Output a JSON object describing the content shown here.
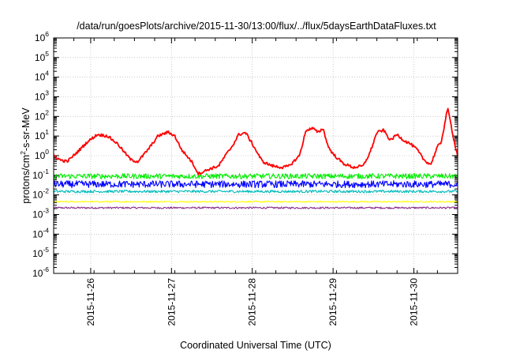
{
  "chart_data": {
    "type": "line",
    "title": "/data/run/goesPlots/archive/2015-11-30/13:00/flux/../flux/5daysEarthDataFluxes.txt",
    "xlabel": "Coordinated Universal Time (UTC)",
    "ylabel_parts": {
      "base": "protons/cm",
      "sup": "2",
      "rest": "-s-sr-MeV"
    },
    "y_scale": "log",
    "ylim": [
      1e-06,
      1000000.0
    ],
    "y_ticks": [
      {
        "value": 1e-06,
        "base": "10",
        "exp": "-6"
      },
      {
        "value": 1e-05,
        "base": "10",
        "exp": "-5"
      },
      {
        "value": 0.0001,
        "base": "10",
        "exp": "-4"
      },
      {
        "value": 0.001,
        "base": "10",
        "exp": "-3"
      },
      {
        "value": 0.01,
        "base": "10",
        "exp": "-2"
      },
      {
        "value": 0.1,
        "base": "10",
        "exp": "-1"
      },
      {
        "value": 1,
        "base": "10",
        "exp": "0"
      },
      {
        "value": 10,
        "base": "10",
        "exp": "1"
      },
      {
        "value": 100,
        "base": "10",
        "exp": "2"
      },
      {
        "value": 1000,
        "base": "10",
        "exp": "3"
      },
      {
        "value": 10000,
        "base": "10",
        "exp": "4"
      },
      {
        "value": 100000,
        "base": "10",
        "exp": "5"
      },
      {
        "value": 1000000,
        "base": "10",
        "exp": "6"
      }
    ],
    "xlim": [
      "2015-11-25T13:00",
      "2015-11-30T13:00"
    ],
    "x_ticks": [
      "2015-11-26",
      "2015-11-27",
      "2015-11-28",
      "2015-11-29",
      "2015-11-30"
    ],
    "grid": true,
    "series": [
      {
        "color": "#ff0000",
        "x": [
          "2015-11-25T13:00",
          "2015-11-25T15:00",
          "2015-11-25T17:00",
          "2015-11-25T20:00",
          "2015-11-25T23:00",
          "2015-11-26T02:00",
          "2015-11-26T05:00",
          "2015-11-26T08:00",
          "2015-11-26T10:00",
          "2015-11-26T12:00",
          "2015-11-26T14:00",
          "2015-11-26T17:00",
          "2015-11-26T20:00",
          "2015-11-26T23:00",
          "2015-11-27T01:00",
          "2015-11-27T03:00",
          "2015-11-27T06:00",
          "2015-11-27T08:00",
          "2015-11-27T11:00",
          "2015-11-27T14:00",
          "2015-11-27T16:00",
          "2015-11-27T18:00",
          "2015-11-27T20:00",
          "2015-11-27T22:00",
          "2015-11-28T00:00",
          "2015-11-28T03:00",
          "2015-11-28T06:00",
          "2015-11-28T09:00",
          "2015-11-28T11:00",
          "2015-11-28T14:00",
          "2015-11-28T16:00",
          "2015-11-28T18:00",
          "2015-11-28T19:30",
          "2015-11-28T21:00",
          "2015-11-28T22:30",
          "2015-11-29T00:00",
          "2015-11-29T03:00",
          "2015-11-29T06:00",
          "2015-11-29T09:00",
          "2015-11-29T11:00",
          "2015-11-29T13:00",
          "2015-11-29T15:00",
          "2015-11-29T17:00",
          "2015-11-29T19:00",
          "2015-11-29T21:00",
          "2015-11-29T23:00",
          "2015-11-30T01:00",
          "2015-11-30T03:00",
          "2015-11-30T05:00",
          "2015-11-30T06:00",
          "2015-11-30T07:00",
          "2015-11-30T08:00",
          "2015-11-30T09:00",
          "2015-11-30T10:00",
          "2015-11-30T11:00",
          "2015-11-30T12:00",
          "2015-11-30T13:00"
        ],
        "values": [
          1.0,
          0.6,
          0.5,
          1.5,
          5,
          12,
          10,
          4,
          1.5,
          0.6,
          0.5,
          2,
          10,
          16,
          10,
          2,
          0.5,
          0.12,
          0.2,
          0.3,
          1,
          3,
          12,
          15,
          4,
          0.5,
          0.3,
          0.25,
          0.3,
          1,
          20,
          25,
          15,
          25,
          3,
          1.2,
          0.4,
          0.25,
          0.3,
          1.5,
          15,
          20,
          6,
          12,
          6,
          4,
          2,
          0.6,
          0.35,
          1,
          3,
          4,
          30,
          270,
          40,
          5,
          1
        ]
      },
      {
        "color": "#00ee00",
        "x": [
          "2015-11-25T13:00",
          "2015-11-30T13:00"
        ],
        "values": [
          0.09,
          0.09
        ],
        "noise": 0.12
      },
      {
        "color": "#0000ff",
        "x": [
          "2015-11-25T13:00",
          "2015-11-30T13:00"
        ],
        "values": [
          0.035,
          0.035
        ],
        "noise": 0.16
      },
      {
        "color": "#00bbbb",
        "x": [
          "2015-11-25T13:00",
          "2015-11-30T13:00"
        ],
        "values": [
          0.015,
          0.015
        ],
        "noise": 0.06
      },
      {
        "color": "#ffff00",
        "x": [
          "2015-11-25T13:00",
          "2015-11-30T13:00"
        ],
        "values": [
          0.0045,
          0.0045
        ],
        "noise": 0.03
      },
      {
        "color": "#8b2c8b",
        "x": [
          "2015-11-25T13:00",
          "2015-11-30T13:00"
        ],
        "values": [
          0.0022,
          0.0022
        ],
        "noise": 0.04
      }
    ]
  }
}
